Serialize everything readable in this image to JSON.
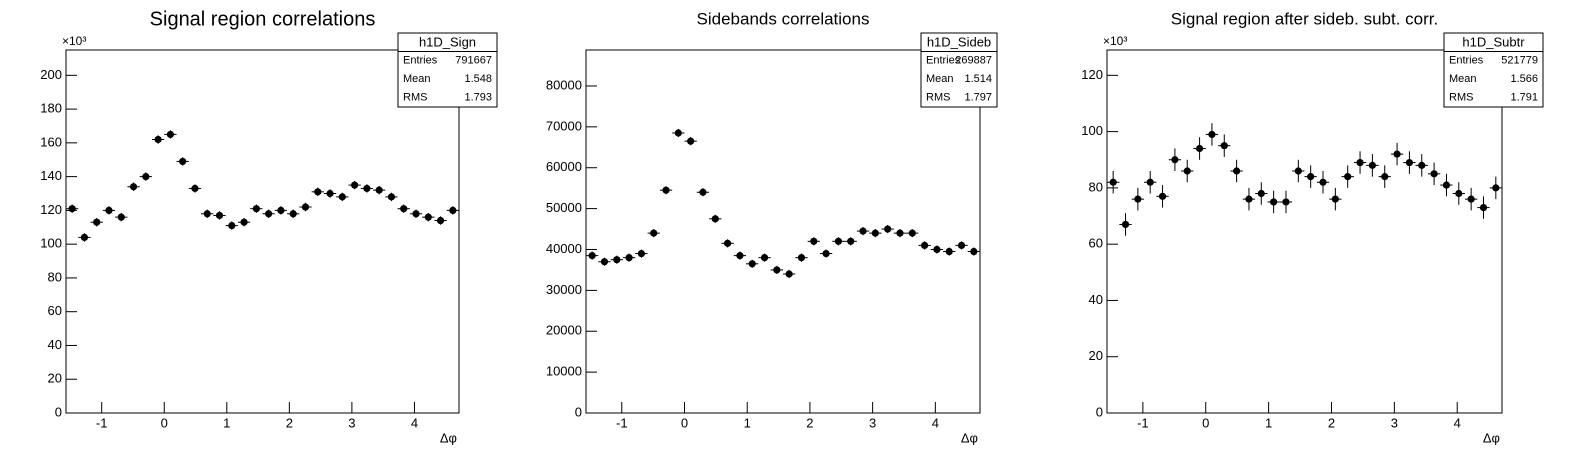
{
  "chart_data": [
    {
      "type": "histogram",
      "title": "Signal region correlations",
      "x_label": "Δφ",
      "y_multiplier": "×10³",
      "color": "#000000",
      "bins": [
        -1.5708,
        -1.3744,
        -1.1781,
        -0.9817,
        -0.7854,
        -0.589,
        -0.3927,
        -0.1963,
        0,
        0.1963,
        0.3927,
        0.589,
        0.7854,
        0.9817,
        1.1781,
        1.3744,
        1.5708,
        1.7671,
        1.9635,
        2.1598,
        2.3562,
        2.5525,
        2.7489,
        2.9452,
        3.1416,
        3.3379,
        3.5343,
        3.7306,
        3.927,
        4.1233,
        4.3197,
        4.516,
        4.7124
      ],
      "values": [
        121,
        104,
        113,
        120,
        116,
        134,
        140,
        162,
        165,
        149,
        133,
        118,
        117,
        111,
        113,
        121,
        118,
        120,
        118,
        122,
        131,
        130,
        128,
        135,
        133,
        132,
        128,
        121,
        118,
        116,
        114,
        120
      ],
      "errors": [
        2.5,
        2.5,
        2.5,
        2.5,
        2.5,
        2.5,
        2.5,
        2.5,
        2.5,
        2.5,
        2.5,
        2.5,
        2.5,
        2.5,
        2.5,
        2.5,
        2.5,
        2.5,
        2.5,
        2.5,
        2.5,
        2.5,
        2.5,
        2.5,
        2.5,
        2.5,
        2.5,
        2.5,
        2.5,
        2.5,
        2.5,
        2.5
      ],
      "xlim": [
        -1.5708,
        4.7124
      ],
      "xticks": [
        -1,
        0,
        1,
        2,
        3,
        4
      ],
      "ylim": [
        0,
        215
      ],
      "yticks": [
        0,
        20,
        40,
        60,
        80,
        100,
        120,
        140,
        160,
        180,
        200
      ],
      "stats": {
        "name": "h1D_Sign",
        "rows": [
          [
            "Entries",
            791667
          ],
          [
            "Mean",
            1.548
          ],
          [
            "RMS",
            1.793
          ]
        ]
      }
    },
    {
      "type": "histogram",
      "title": "Sidebands correlations",
      "x_label": "Δφ",
      "color": "#000000",
      "bins": [
        -1.5708,
        -1.3744,
        -1.1781,
        -0.9817,
        -0.7854,
        -0.589,
        -0.3927,
        -0.1963,
        0,
        0.1963,
        0.3927,
        0.589,
        0.7854,
        0.9817,
        1.1781,
        1.3744,
        1.5708,
        1.7671,
        1.9635,
        2.1598,
        2.3562,
        2.5525,
        2.7489,
        2.9452,
        3.1416,
        3.3379,
        3.5343,
        3.7306,
        3.927,
        4.1233,
        4.3197,
        4.516,
        4.7124
      ],
      "values": [
        38500,
        37000,
        37500,
        38000,
        39000,
        44000,
        54500,
        68500,
        66500,
        54000,
        47500,
        41500,
        38500,
        36500,
        38000,
        35000,
        34000,
        38000,
        42000,
        39000,
        42000,
        42000,
        44500,
        44000,
        45000,
        44000,
        44000,
        41000,
        40000,
        39500,
        41000,
        39500
      ],
      "errors": [
        1000,
        1000,
        1000,
        1000,
        1000,
        1000,
        1000,
        1000,
        1000,
        1000,
        1000,
        1000,
        1000,
        1000,
        1000,
        1000,
        1000,
        1000,
        1000,
        1000,
        1000,
        1000,
        1000,
        1000,
        1000,
        1000,
        1000,
        1000,
        1000,
        1000,
        1000,
        1000
      ],
      "xlim": [
        -1.5708,
        4.7124
      ],
      "xticks": [
        -1,
        0,
        1,
        2,
        3,
        4
      ],
      "ylim": [
        0,
        88800
      ],
      "yticks": [
        0,
        10000,
        20000,
        30000,
        40000,
        50000,
        60000,
        70000,
        80000
      ],
      "stats": {
        "name": "h1D_Sideb",
        "rows": [
          [
            "Entries",
            269887
          ],
          [
            "Mean",
            1.514
          ],
          [
            "RMS",
            1.797
          ]
        ]
      }
    },
    {
      "type": "histogram",
      "title": "Signal region after sideb. subt. corr.",
      "x_label": "Δφ",
      "y_multiplier": "×10³",
      "color": "#000000",
      "bins": [
        -1.5708,
        -1.3744,
        -1.1781,
        -0.9817,
        -0.7854,
        -0.589,
        -0.3927,
        -0.1963,
        0,
        0.1963,
        0.3927,
        0.589,
        0.7854,
        0.9817,
        1.1781,
        1.3744,
        1.5708,
        1.7671,
        1.9635,
        2.1598,
        2.3562,
        2.5525,
        2.7489,
        2.9452,
        3.1416,
        3.3379,
        3.5343,
        3.7306,
        3.927,
        4.1233,
        4.3197,
        4.516,
        4.7124
      ],
      "values": [
        82,
        67,
        76,
        82,
        77,
        90,
        86,
        94,
        99,
        95,
        86,
        76,
        78,
        75,
        75,
        86,
        84,
        82,
        76,
        84,
        89,
        88,
        84,
        92,
        89,
        88,
        85,
        81,
        78,
        76,
        73,
        80
      ],
      "errors": [
        4,
        4,
        4,
        4,
        4,
        4,
        4,
        4,
        4,
        4,
        4,
        4,
        4,
        4,
        4,
        4,
        4,
        4,
        4,
        4,
        4,
        4,
        4,
        4,
        4,
        4,
        4,
        4,
        4,
        4,
        4,
        4
      ],
      "xlim": [
        -1.5708,
        4.7124
      ],
      "xticks": [
        -1,
        0,
        1,
        2,
        3,
        4
      ],
      "ylim": [
        0,
        129
      ],
      "yticks": [
        0,
        20,
        40,
        60,
        80,
        100,
        120
      ],
      "stats": {
        "name": "h1D_Subtr",
        "rows": [
          [
            "Entries",
            521779
          ],
          [
            "Mean",
            1.566
          ],
          [
            "RMS",
            1.791
          ]
        ]
      }
    }
  ]
}
